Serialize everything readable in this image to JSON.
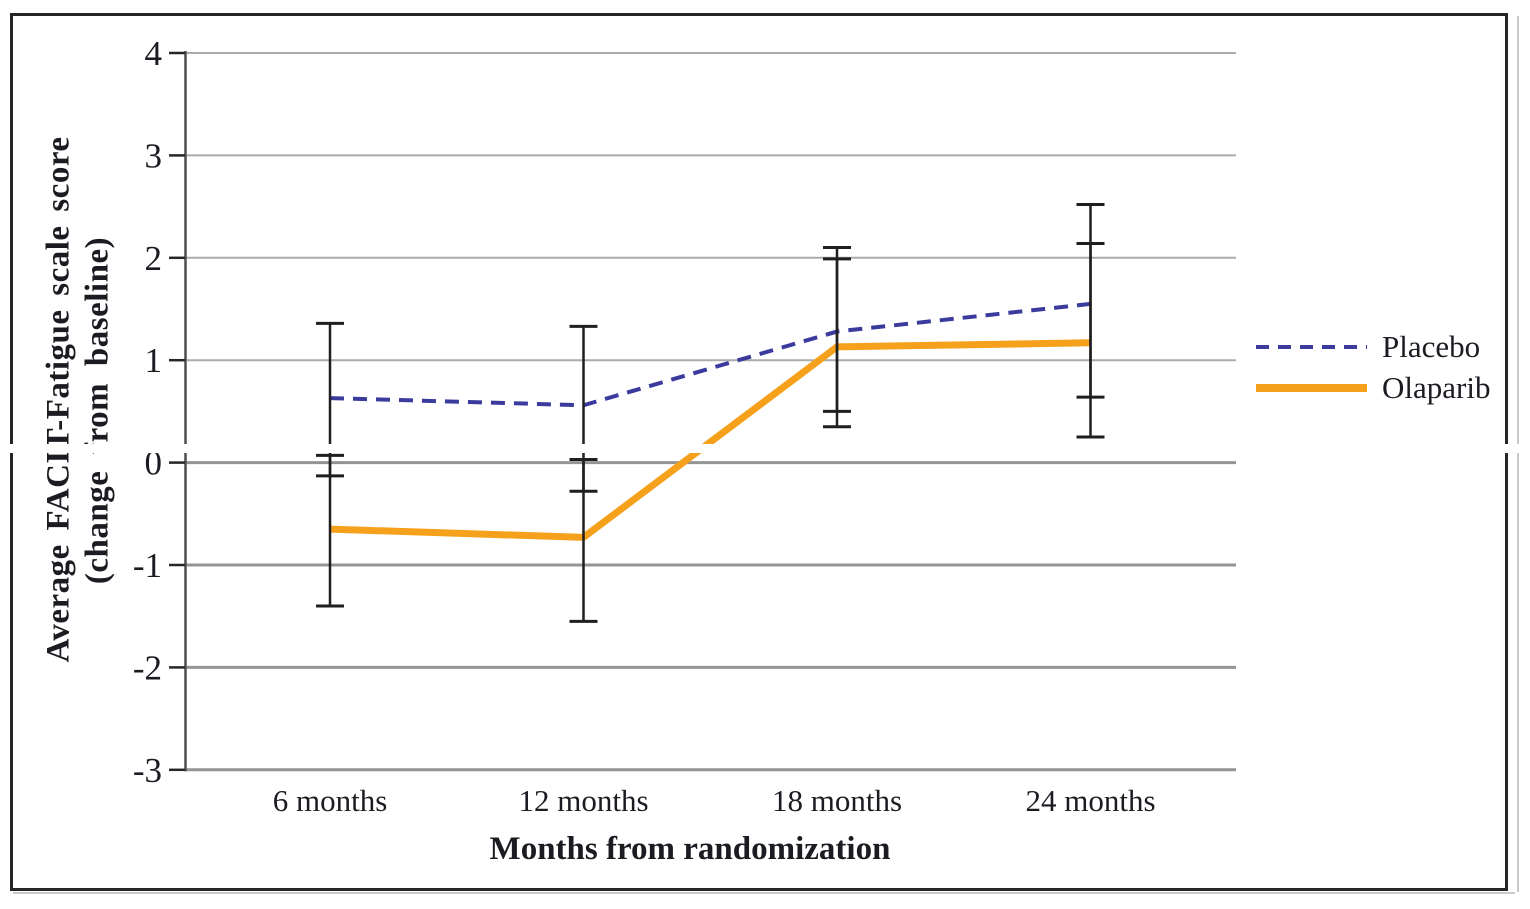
{
  "figure": {
    "frame_color": "#262626",
    "background": "#ffffff",
    "grid_color_upper": "#ababab",
    "grid_color_lower": "#949494",
    "axis_color": "#4f4f4f",
    "tick_color": "#262626",
    "error_bar_color": "#1f1f1f",
    "text_color": "#1b1b22"
  },
  "chart_data": {
    "type": "line",
    "xlabel": "Months from randomization",
    "ylabel": "Average FACIT-Fatigue scale score",
    "ylabel_line2": "(change from baseline)",
    "categories": [
      "6 months",
      "12 months",
      "18 months",
      "24 months"
    ],
    "x_months": [
      6,
      12,
      18,
      24
    ],
    "yticks": [
      4,
      3,
      2,
      1,
      0,
      -1,
      -2,
      -3
    ],
    "ylim": [
      -3,
      4
    ],
    "grid": true,
    "legend_position": "right-outside",
    "series": [
      {
        "name": "Placebo",
        "color": "#3b3b9e",
        "line_style": "dashed",
        "values": [
          0.63,
          0.56,
          1.28,
          1.55
        ],
        "ci_low": [
          -0.13,
          -0.28,
          0.5,
          0.64
        ],
        "ci_high": [
          1.36,
          1.33,
          2.1,
          2.52
        ]
      },
      {
        "name": "Olaparib",
        "color": "#f6a11c",
        "line_style": "solid",
        "values": [
          -0.65,
          -0.73,
          1.13,
          1.17
        ],
        "ci_low": [
          -1.4,
          -1.55,
          0.35,
          0.25
        ],
        "ci_high": [
          0.07,
          0.03,
          1.99,
          2.14
        ]
      }
    ]
  }
}
